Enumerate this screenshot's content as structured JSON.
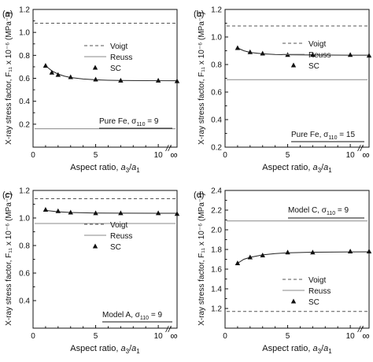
{
  "chart_data": [
    {
      "type": "line",
      "panel_label": "(a)",
      "xlabel_main": "Aspect ratio, ",
      "xlabel_a3": "a",
      "xlabel_sub3": "3",
      "xlabel_slash": "/",
      "xlabel_a1": "a",
      "xlabel_sub1": "1",
      "ylabel": "X-ray stress factor, F₁₁ x 10⁻⁶ (MPa⁻¹)",
      "xlim": [
        0,
        11.5
      ],
      "ylim": [
        0,
        1.2
      ],
      "x_ticks": [
        0,
        5,
        10
      ],
      "x_tick_labels": [
        "0",
        "5",
        "10"
      ],
      "infinity_label": "∞",
      "break_mark": "//",
      "y_ticks": [
        0.2,
        0.4,
        0.6,
        0.8,
        1.0,
        1.2
      ],
      "y_tick_labels": [
        "0.2",
        "0.4",
        "0.6",
        "0.8",
        "1.0",
        "1.2"
      ],
      "voigt": 1.08,
      "reuss": 0.16,
      "sc_points": {
        "x": [
          1,
          1.5,
          2,
          3,
          5,
          7,
          10,
          11.5
        ],
        "y": [
          0.71,
          0.65,
          0.63,
          0.61,
          0.59,
          0.58,
          0.58,
          0.575
        ]
      },
      "sc_curve": {
        "x": [
          1,
          1.5,
          2,
          2.5,
          3,
          4,
          5,
          6,
          7,
          8,
          10,
          11.5
        ],
        "y": [
          0.71,
          0.665,
          0.637,
          0.619,
          0.607,
          0.594,
          0.587,
          0.583,
          0.581,
          0.58,
          0.579,
          0.579
        ]
      },
      "legend": [
        "Voigt",
        "Reuss",
        "SC"
      ],
      "annotation": {
        "text": "Pure Fe, σ",
        "sub": "110",
        "tail": " = 9"
      }
    },
    {
      "type": "line",
      "panel_label": "(b)",
      "xlabel_main": "Aspect ratio, ",
      "xlabel_a3": "a",
      "xlabel_sub3": "3",
      "xlabel_slash": "/",
      "xlabel_a1": "a",
      "xlabel_sub1": "1",
      "ylabel": "X-ray stress factor, F₁₁ x 10⁻⁶ (MPa⁻¹)",
      "xlim": [
        0,
        11.5
      ],
      "ylim": [
        0.2,
        1.2
      ],
      "x_ticks": [
        0,
        5,
        10
      ],
      "x_tick_labels": [
        "0",
        "5",
        "10"
      ],
      "infinity_label": "∞",
      "break_mark": "//",
      "y_ticks": [
        0.2,
        0.4,
        0.6,
        0.8,
        1.0,
        1.2
      ],
      "y_tick_labels": [
        "0.2",
        "0.4",
        "0.6",
        "0.8",
        "1.0",
        "1.2"
      ],
      "voigt": 1.08,
      "reuss": 0.69,
      "sc_points": {
        "x": [
          1,
          2,
          3,
          5,
          7,
          10,
          11.5
        ],
        "y": [
          0.92,
          0.89,
          0.88,
          0.87,
          0.87,
          0.87,
          0.865
        ]
      },
      "sc_curve": {
        "x": [
          1,
          1.5,
          2,
          3,
          4,
          5,
          7,
          10,
          11.5
        ],
        "y": [
          0.92,
          0.9,
          0.888,
          0.878,
          0.873,
          0.871,
          0.869,
          0.868,
          0.868
        ]
      },
      "legend": [
        "Voigt",
        "Reuss",
        "SC"
      ],
      "annotation": {
        "text": "Pure Fe, σ",
        "sub": "110",
        "tail": " = 15"
      }
    },
    {
      "type": "line",
      "panel_label": "(c)",
      "xlabel_main": "Aspect ratio, ",
      "xlabel_a3": "a",
      "xlabel_sub3": "3",
      "xlabel_slash": "/",
      "xlabel_a1": "a",
      "xlabel_sub1": "1",
      "ylabel": "X-ray stress factor, F₁₁ x 10⁻⁶ (MPa⁻¹)",
      "xlim": [
        0,
        11.5
      ],
      "ylim": [
        0.2,
        1.2
      ],
      "x_ticks": [
        0,
        5,
        10
      ],
      "x_tick_labels": [
        "0",
        "5",
        "10"
      ],
      "infinity_label": "∞",
      "break_mark": "//",
      "y_ticks": [
        0.4,
        0.6,
        0.8,
        1.0,
        1.2
      ],
      "y_tick_labels": [
        "0.4",
        "0.6",
        "0.8",
        "1.0",
        "1.2"
      ],
      "voigt": 1.14,
      "reuss": 0.96,
      "sc_points": {
        "x": [
          1,
          2,
          3,
          5,
          7,
          10,
          11.5
        ],
        "y": [
          1.06,
          1.05,
          1.04,
          1.035,
          1.035,
          1.035,
          1.03
        ]
      },
      "sc_curve": {
        "x": [
          1,
          2,
          3,
          5,
          7,
          10,
          11.5
        ],
        "y": [
          1.055,
          1.045,
          1.04,
          1.036,
          1.035,
          1.034,
          1.034
        ]
      },
      "legend": [
        "Voigt",
        "Reuss",
        "SC"
      ],
      "annotation": {
        "text": "Model A, σ",
        "sub": "110",
        "tail": " = 9"
      }
    },
    {
      "type": "line",
      "panel_label": "(d)",
      "xlabel_main": "Aspect ratio, ",
      "xlabel_a3": "a",
      "xlabel_sub3": "3",
      "xlabel_slash": "/",
      "xlabel_a1": "a",
      "xlabel_sub1": "1",
      "ylabel": "X-ray stress factor, F₁₁ x 10⁻⁶ (MPa⁻¹)",
      "xlim": [
        0,
        11.5
      ],
      "ylim": [
        1.0,
        2.4
      ],
      "x_ticks": [
        0,
        5,
        10
      ],
      "x_tick_labels": [
        "0",
        "5",
        "10"
      ],
      "infinity_label": "∞",
      "break_mark": "//",
      "y_ticks": [
        1.2,
        1.4,
        1.6,
        1.8,
        2.0,
        2.2,
        2.4
      ],
      "y_tick_labels": [
        "1.2",
        "1.4",
        "1.6",
        "1.8",
        "2.0",
        "2.2",
        "2.4"
      ],
      "voigt": 1.17,
      "reuss": 2.09,
      "sc_points": {
        "x": [
          1,
          2,
          3,
          5,
          7,
          10,
          11.5
        ],
        "y": [
          1.66,
          1.72,
          1.74,
          1.77,
          1.77,
          1.78,
          1.78
        ]
      },
      "sc_curve": {
        "x": [
          1,
          1.5,
          2,
          3,
          4,
          5,
          7,
          10,
          11.5
        ],
        "y": [
          1.66,
          1.7,
          1.72,
          1.745,
          1.758,
          1.766,
          1.772,
          1.775,
          1.776
        ]
      },
      "legend": [
        "Voigt",
        "Reuss",
        "SC"
      ],
      "annotation": {
        "text": "Model C, σ",
        "sub": "110",
        "tail": " = 9"
      }
    }
  ]
}
